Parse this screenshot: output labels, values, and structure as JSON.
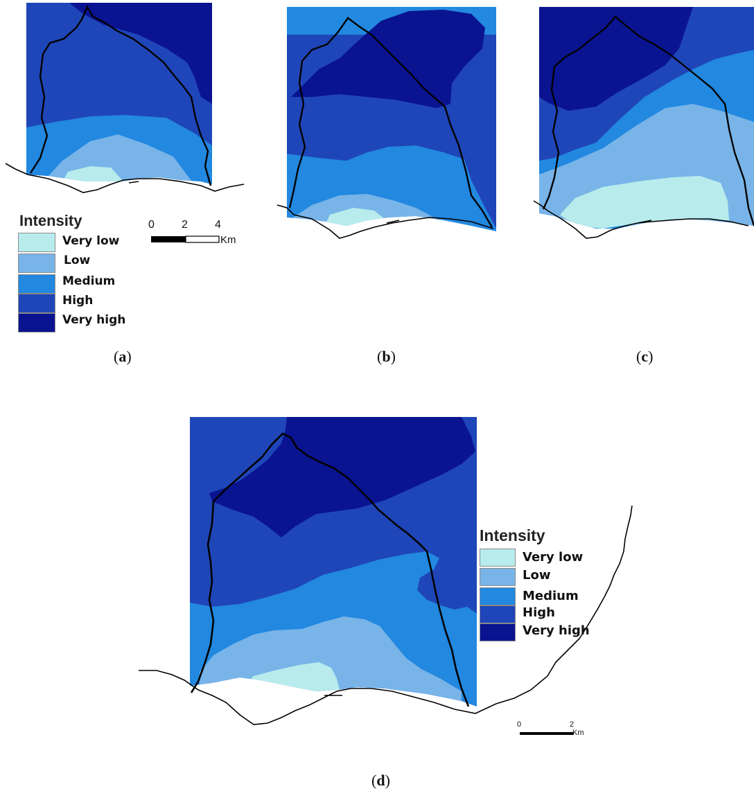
{
  "legend": {
    "title": "Intensity",
    "classes": [
      {
        "label": "Very low",
        "color": "#b8ecec"
      },
      {
        "label": "Low",
        "color": "#78b4e8"
      },
      {
        "label": "Medium",
        "color": "#2288e0"
      },
      {
        "label": "High",
        "color": "#1f46b8"
      },
      {
        "label": "Very high",
        "color": "#0a1490"
      }
    ]
  },
  "scalebar_small": {
    "ticks": [
      "0",
      "2",
      "4"
    ],
    "unit": "Km"
  },
  "scalebar_d": {
    "ticks": [
      "0",
      "2"
    ],
    "unit": "Km"
  },
  "panels": [
    {
      "letter": "a"
    },
    {
      "letter": "b"
    },
    {
      "letter": "c"
    },
    {
      "letter": "d"
    }
  ],
  "colors": {
    "boundary": "#000000",
    "coastline": "#000000"
  }
}
